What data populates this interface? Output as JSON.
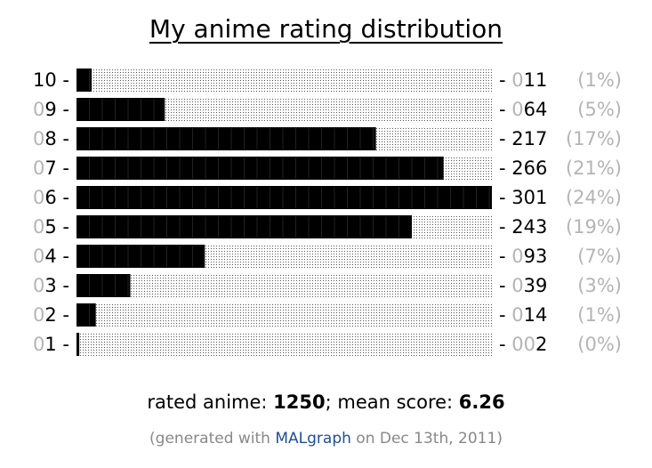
{
  "chart_data": {
    "type": "bar",
    "orientation": "horizontal",
    "title": "My anime rating distribution",
    "categories": [
      "10",
      "09",
      "08",
      "07",
      "06",
      "05",
      "04",
      "03",
      "02",
      "01"
    ],
    "values": [
      11,
      64,
      217,
      266,
      301,
      243,
      93,
      39,
      14,
      2
    ],
    "count_labels": [
      "011",
      "064",
      "217",
      "266",
      "301",
      "243",
      "093",
      "039",
      "014",
      "002"
    ],
    "percent_labels": [
      "(1%)",
      "(5%)",
      "(17%)",
      "(21%)",
      "(24%)",
      "(19%)",
      "(7%)",
      "(3%)",
      "(1%)",
      "(0%)"
    ],
    "xlim": [
      0,
      301
    ],
    "grid": false,
    "legend": "none",
    "colors": {
      "bar": "#000000",
      "track_dots": "#555555",
      "muted_text": "#b4b4b4",
      "link": "#1f4e9e"
    }
  },
  "summary": {
    "rated_label": "rated anime: ",
    "rated_value": "1250",
    "separator": "; mean score: ",
    "mean_value": "6.26"
  },
  "footer": {
    "prefix": "(generated with ",
    "link_text": "MALgraph",
    "suffix": " on Dec 13th, 2011)"
  }
}
